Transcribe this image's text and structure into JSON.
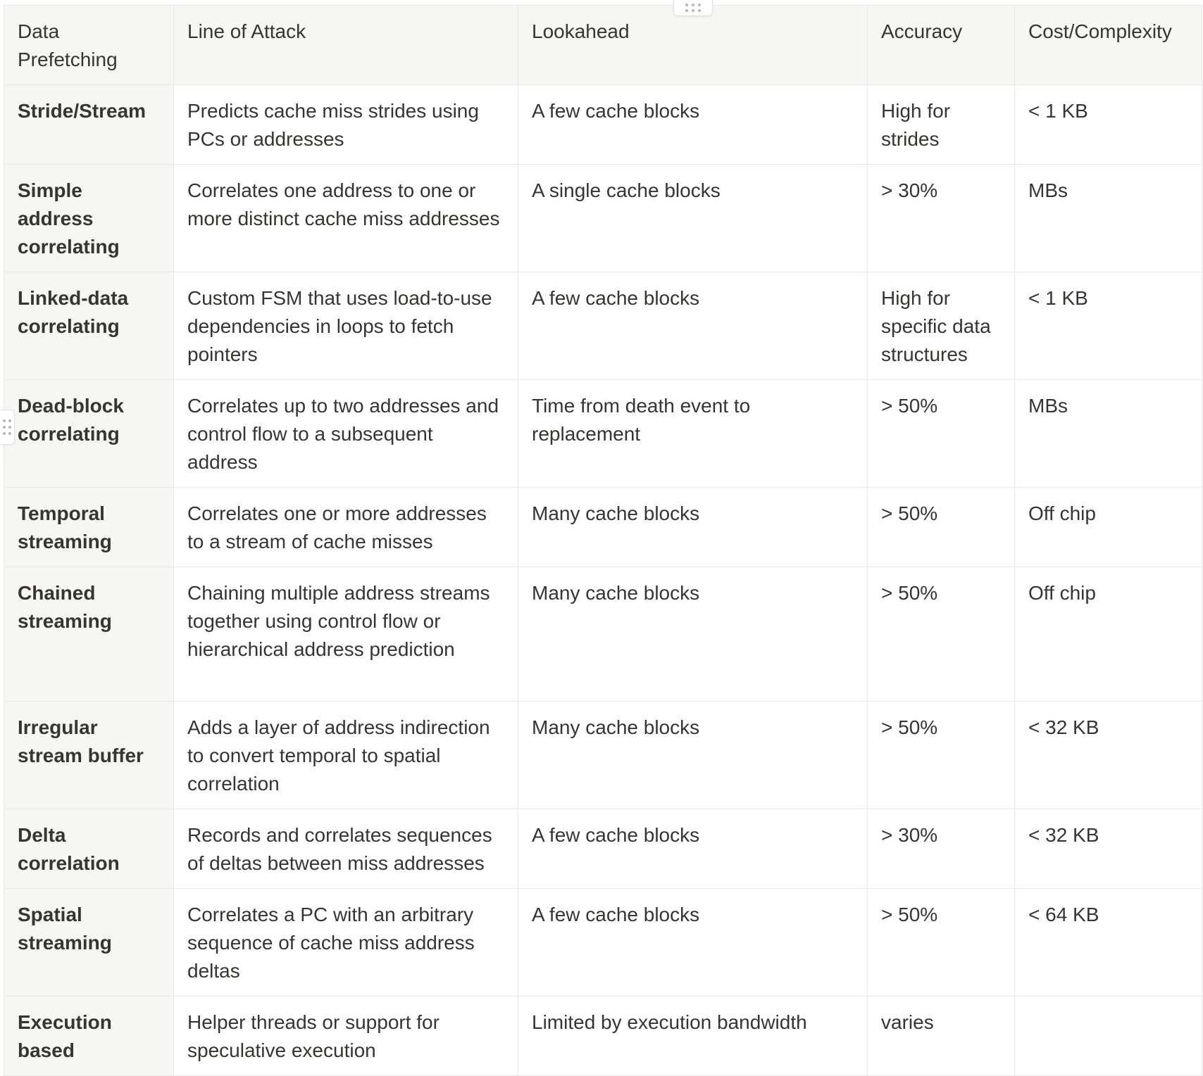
{
  "table": {
    "headers": [
      "Data Prefetching",
      "Line of Attack",
      "Lookahead",
      "Accuracy",
      "Cost/Complexity"
    ],
    "rows": [
      [
        "Stride/Stream",
        "Predicts cache miss strides using PCs or addresses",
        "A few cache blocks",
        "High for strides",
        "< 1 KB"
      ],
      [
        "Simple address correlating",
        "Correlates one address to one or more distinct cache miss addresses",
        "A single cache blocks",
        "> 30%",
        "MBs"
      ],
      [
        "Linked-data correlating",
        "Custom FSM that uses load-to-use dependencies in loops to fetch pointers",
        "A few cache blocks",
        "High for specific data structures",
        "< 1 KB"
      ],
      [
        "Dead-block correlating",
        "Correlates up to two addresses and control flow to a subsequent address",
        "Time from death event to replacement",
        "> 50%",
        "MBs"
      ],
      [
        "Temporal streaming",
        "Correlates one or more addresses to a stream of cache misses",
        "Many cache blocks",
        "> 50%",
        "Off chip"
      ],
      [
        "Chained streaming",
        "Chaining multiple address streams together using control flow or hierarchical address prediction",
        "Many cache blocks",
        "> 50%",
        "Off chip"
      ],
      [
        "Irregular stream buffer",
        "Adds a layer of address indirection to convert temporal to spatial correlation",
        "Many cache blocks",
        "> 50%",
        "< 32 KB"
      ],
      [
        "Delta correlation",
        "Records and correlates sequences of deltas between miss addresses",
        "A few cache blocks",
        "> 30%",
        "< 32 KB"
      ],
      [
        "Spatial streaming",
        "Correlates a PC with an arbitrary sequence of cache miss address deltas",
        "A few cache blocks",
        "> 50%",
        "< 64 KB"
      ],
      [
        "Execution based",
        "Helper threads or support for speculative execution",
        "Limited by execution bandwidth",
        "varies",
        ""
      ]
    ]
  },
  "handles": {
    "column_handle_icon": "drag-handle-horizontal",
    "row_handle_icon": "drag-handle-vertical"
  }
}
